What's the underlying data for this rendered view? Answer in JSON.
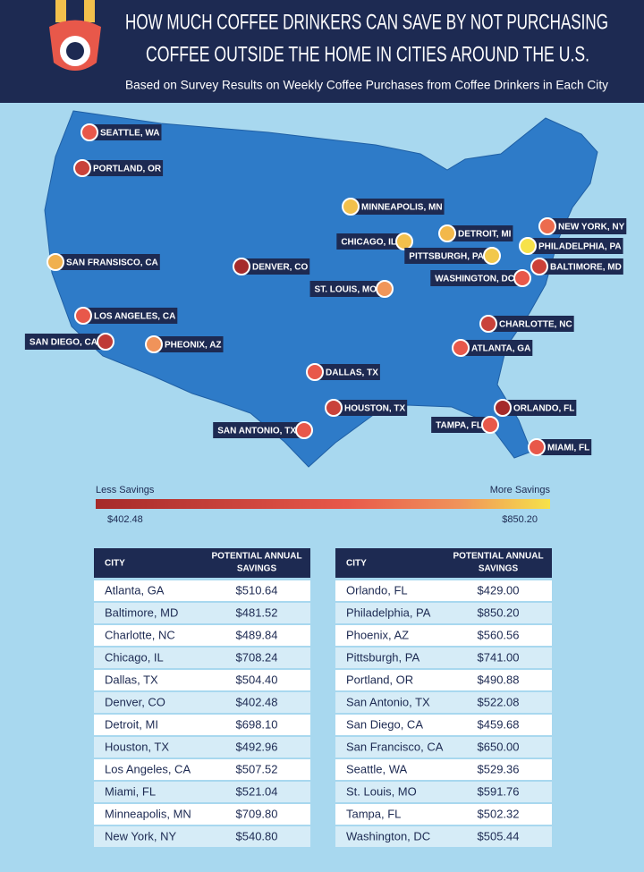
{
  "header": {
    "title_lines": [
      "HOW MUCH COFFEE DRINKERS CAN SAVE BY NOT PURCHASING",
      "COFFEE OUTSIDE THE HOME IN CITIES AROUND THE U.S."
    ],
    "subtitle": "Based on Survey Results on Weekly Coffee Purchases from Coffee Drinkers in Each City"
  },
  "map": {
    "markers": [
      {
        "label": "SEATTLE, WA",
        "color": "#e8584a"
      },
      {
        "label": "PORTLAND, OR",
        "color": "#c9423a"
      },
      {
        "label": "SAN FRANSISCO, CA",
        "color": "#f0b04e"
      },
      {
        "label": "LOS ANGELES, CA",
        "color": "#e8584a"
      },
      {
        "label": "SAN DIEGO, CA",
        "color": "#bf3a36"
      },
      {
        "label": "PHEONIX, AZ",
        "color": "#f0935a"
      },
      {
        "label": "DENVER, CO",
        "color": "#a52a2a"
      },
      {
        "label": "MINNEAPOLIS, MN",
        "color": "#f2c04c"
      },
      {
        "label": "CHICAGO, IL",
        "color": "#f2c04c"
      },
      {
        "label": "DETROIT, MI",
        "color": "#f2b84b"
      },
      {
        "label": "PITTSBURGH, PA",
        "color": "#f2c84c"
      },
      {
        "label": "NEW YORK, NY",
        "color": "#ec6c4e"
      },
      {
        "label": "PHILADELPHIA, PA",
        "color": "#f6e24a"
      },
      {
        "label": "BALTIMORE, MD",
        "color": "#cc4038"
      },
      {
        "label": "WASHINGTON, DC",
        "color": "#e8584a"
      },
      {
        "label": "ST. LOUIS, MO",
        "color": "#f0965a"
      },
      {
        "label": "CHARLOTTE, NC",
        "color": "#c9423a"
      },
      {
        "label": "ATLANTA, GA",
        "color": "#e8584a"
      },
      {
        "label": "DALLAS, TX",
        "color": "#e8584a"
      },
      {
        "label": "HOUSTON, TX",
        "color": "#c9423a"
      },
      {
        "label": "SAN ANTONIO, TX",
        "color": "#e8584a"
      },
      {
        "label": "ORLANDO, FL",
        "color": "#a52a2a"
      },
      {
        "label": "TAMPA, FL",
        "color": "#e8584a"
      },
      {
        "label": "MIAMI, FL",
        "color": "#e8584a"
      }
    ]
  },
  "legend": {
    "low_label": "Less Savings",
    "high_label": "More Savings",
    "low_value": "$402.48",
    "high_value": "$850.20",
    "low_color": "#a52a2a",
    "high_color": "#f6e24a"
  },
  "tables": [
    {
      "city_header": "CITY",
      "savings_header": [
        "POTENTIAL ANNUAL",
        "SAVINGS"
      ],
      "rows": [
        [
          "Atlanta, GA",
          "$510.64"
        ],
        [
          "Baltimore, MD",
          "$481.52"
        ],
        [
          "Charlotte, NC",
          "$489.84"
        ],
        [
          "Chicago, IL",
          "$708.24"
        ],
        [
          "Dallas, TX",
          "$504.40"
        ],
        [
          "Denver, CO",
          "$402.48"
        ],
        [
          "Detroit, MI",
          "$698.10"
        ],
        [
          "Houston, TX",
          "$492.96"
        ],
        [
          "Los Angeles, CA",
          "$507.52"
        ],
        [
          "Miami, FL",
          "$521.04"
        ],
        [
          "Minneapolis, MN",
          "$709.80"
        ],
        [
          "New York, NY",
          "$540.80"
        ]
      ]
    },
    {
      "city_header": "CITY",
      "savings_header": [
        "POTENTIAL ANNUAL",
        "SAVINGS"
      ],
      "rows": [
        [
          "Orlando, FL",
          "$429.00"
        ],
        [
          "Philadelphia, PA",
          "$850.20"
        ],
        [
          "Phoenix, AZ",
          "$560.56"
        ],
        [
          "Pittsburgh, PA",
          "$741.00"
        ],
        [
          "Portland, OR",
          "$490.88"
        ],
        [
          "San Antonio, TX",
          "$522.08"
        ],
        [
          "San Diego, CA",
          "$459.68"
        ],
        [
          "San Francisco, CA",
          "$650.00"
        ],
        [
          "Seattle, WA",
          "$529.36"
        ],
        [
          "St. Louis, MO",
          "$591.76"
        ],
        [
          "Tampa, FL",
          "$502.32"
        ],
        [
          "Washington, DC",
          "$505.44"
        ]
      ]
    }
  ]
}
